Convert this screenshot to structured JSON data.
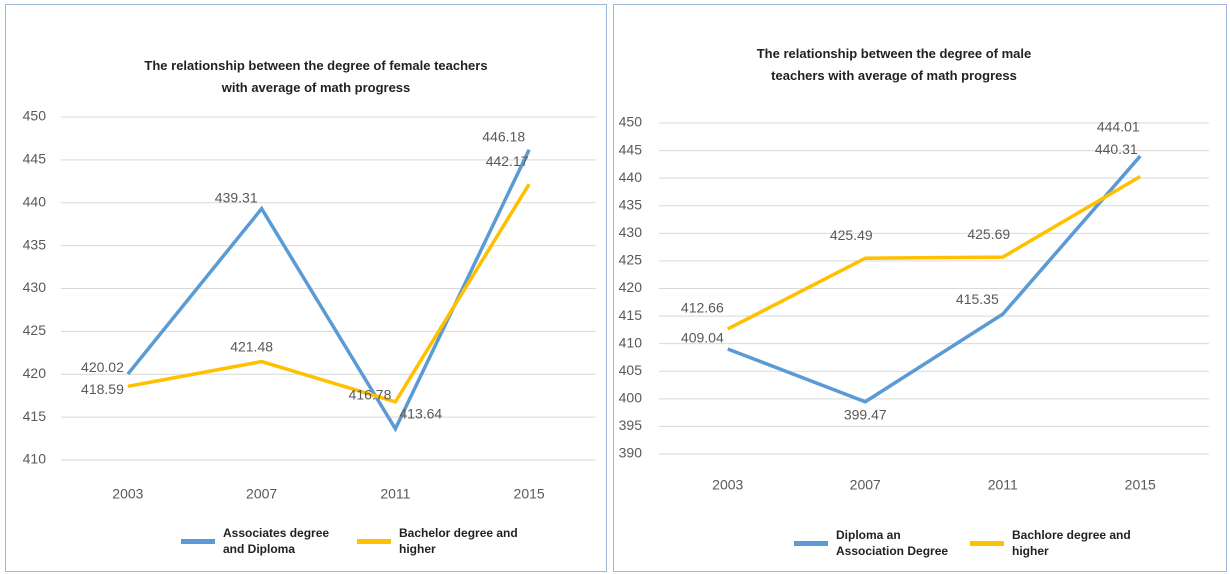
{
  "chart_data": [
    {
      "type": "line",
      "title": "The relationship between the degree of female teachers with average of math progress",
      "categories": [
        "2003",
        "2007",
        "2011",
        "2015"
      ],
      "series": [
        {
          "name": "Associates degree and Diploma",
          "color": "#5b9bd5",
          "values": [
            420.02,
            439.31,
            413.64,
            446.18
          ]
        },
        {
          "name": "Bachelor degree and higher",
          "color": "#ffc000",
          "values": [
            418.59,
            421.48,
            416.78,
            442.17
          ]
        }
      ],
      "ylim": [
        410,
        450
      ],
      "yticks": [
        410,
        415,
        420,
        425,
        430,
        435,
        440,
        445,
        450
      ],
      "grid": true
    },
    {
      "type": "line",
      "title": "The relationship between the degree of male teachers with average of math progress",
      "categories": [
        "2003",
        "2007",
        "2011",
        "2015"
      ],
      "series": [
        {
          "name": "Diploma an Association Degree",
          "color": "#5b9bd5",
          "values": [
            409.04,
            399.47,
            415.35,
            444.01
          ]
        },
        {
          "name": "Bachlore degree and higher",
          "color": "#ffc000",
          "values": [
            412.66,
            425.49,
            425.69,
            440.31
          ]
        }
      ],
      "ylim": [
        390,
        450
      ],
      "yticks": [
        390,
        395,
        400,
        405,
        410,
        415,
        420,
        425,
        430,
        435,
        440,
        445,
        450
      ],
      "grid": true
    }
  ]
}
